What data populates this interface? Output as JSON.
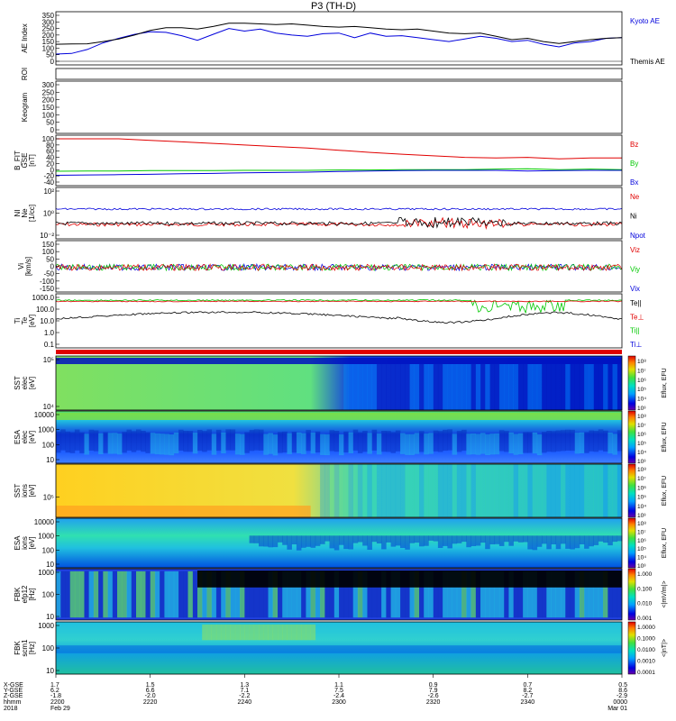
{
  "title": "P3 (TH-D)",
  "colors": {
    "red": "#e10000",
    "green": "#00c800",
    "blue": "#0000dc",
    "black": "#000000"
  },
  "chart_data": [
    {
      "type": "line",
      "id": "ae",
      "ylabel": "AE Index",
      "yticks": [
        "350",
        "300",
        "250",
        "200",
        "150",
        "100",
        "50",
        "0"
      ],
      "ylim": [
        0,
        350
      ],
      "x": [
        0,
        10,
        20,
        30,
        40,
        50,
        60,
        70,
        80,
        90,
        100,
        110,
        120,
        130,
        140,
        150,
        160,
        170,
        180,
        190,
        200,
        210,
        220,
        230,
        240,
        250,
        260,
        270,
        280,
        290,
        300,
        310,
        320,
        330,
        340,
        350,
        360
      ],
      "series": [
        {
          "name": "Kyoto AE",
          "color": "blue",
          "values": [
            55,
            60,
            90,
            140,
            175,
            205,
            225,
            220,
            195,
            160,
            205,
            250,
            230,
            245,
            215,
            200,
            190,
            210,
            215,
            180,
            215,
            190,
            195,
            180,
            165,
            150,
            170,
            190,
            175,
            150,
            160,
            130,
            110,
            140,
            150,
            175,
            180
          ]
        },
        {
          "name": "Themis AE",
          "color": "black",
          "values": [
            130,
            132,
            133,
            150,
            170,
            200,
            235,
            255,
            255,
            245,
            265,
            290,
            290,
            285,
            280,
            285,
            275,
            265,
            260,
            265,
            255,
            245,
            240,
            245,
            230,
            215,
            210,
            215,
            190,
            165,
            175,
            150,
            135,
            150,
            165,
            175,
            180
          ]
        }
      ]
    },
    {
      "type": "line",
      "id": "roi",
      "ylabel": "ROI",
      "yticks": []
    },
    {
      "type": "line",
      "id": "keogram",
      "ylabel": "Keogram",
      "yticks": [
        "300",
        "250",
        "200",
        "150",
        "100",
        "50",
        "0"
      ],
      "ylim": [
        0,
        320
      ]
    },
    {
      "type": "line",
      "id": "bfield",
      "ylabel": "B_FIT\nGSE\n[nT]",
      "yticks": [
        "100",
        "80",
        "60",
        "40",
        "20",
        "0",
        "-20",
        "-40"
      ],
      "ylim": [
        -40,
        100
      ],
      "x": [
        0,
        20,
        40,
        60,
        80,
        100,
        120,
        140,
        160,
        180,
        200,
        220,
        240,
        260,
        280,
        300,
        320,
        340,
        360
      ],
      "series": [
        {
          "name": "Bz",
          "color": "red",
          "values": [
            108,
            105,
            100,
            95,
            90,
            85,
            80,
            75,
            70,
            63,
            56,
            50,
            45,
            40,
            38,
            40,
            35,
            38,
            38
          ]
        },
        {
          "name": "By",
          "color": "green",
          "values": [
            -5,
            -4,
            -4,
            -3,
            -3,
            -3,
            -2,
            -2,
            -2,
            -1,
            -1,
            0,
            0,
            0,
            2,
            3,
            0,
            2,
            0
          ]
        },
        {
          "name": "Bx",
          "color": "blue",
          "values": [
            -18,
            -17,
            -16,
            -15,
            -13,
            -12,
            -10,
            -9,
            -8,
            -6,
            -4,
            -3,
            -2,
            -2,
            -2,
            -4,
            -3,
            -2,
            -2
          ]
        }
      ]
    },
    {
      "type": "line",
      "id": "density",
      "ylabel": "NI\nNe\n[1/cc]",
      "yticks": [
        "10²",
        "10⁰",
        "10⁻²"
      ],
      "log": true,
      "series": [
        {
          "name": "Ne",
          "color": "red"
        },
        {
          "name": "Ni",
          "color": "black"
        },
        {
          "name": "Npot",
          "color": "blue"
        }
      ]
    },
    {
      "type": "line",
      "id": "velocity",
      "ylabel": "Vi\n[km/s]",
      "yticks": [
        "150",
        "100",
        "50",
        "0",
        "-50",
        "-100",
        "-150"
      ],
      "ylim": [
        -175,
        175
      ],
      "series": [
        {
          "name": "Viz",
          "color": "red"
        },
        {
          "name": "Viy",
          "color": "green"
        },
        {
          "name": "Vix",
          "color": "blue"
        }
      ]
    },
    {
      "type": "line",
      "id": "temperature",
      "ylabel": "Ti\nTe\n[eV]",
      "yticks": [
        "1000.0",
        "100.0",
        "10.0",
        "1.0",
        "0.1"
      ],
      "log": true,
      "series": [
        {
          "name": "Te||",
          "color": "black"
        },
        {
          "name": "Te⊥",
          "color": "red"
        },
        {
          "name": "Ti||",
          "color": "green"
        },
        {
          "name": "Ti⊥",
          "color": "blue"
        }
      ]
    },
    {
      "type": "heatmap",
      "id": "sst-e",
      "ylabel": "SST\nelec\n[eV]",
      "yticks": [
        "10⁵",
        "10⁴"
      ],
      "colorbar": [
        "10⁸",
        "10⁷",
        "10⁶",
        "10⁵",
        "10⁴",
        "10³"
      ],
      "colorbar_label": "Eflux, EFU"
    },
    {
      "type": "heatmap",
      "id": "esa-e",
      "ylabel": "ESA\nelec\n[eV]",
      "yticks": [
        "10000",
        "1000",
        "100",
        "10"
      ],
      "colorbar": [
        "10⁸",
        "10⁷",
        "10⁶",
        "10⁵",
        "10⁴",
        "10³"
      ],
      "colorbar_label": "Eflux, EFU"
    },
    {
      "type": "heatmap",
      "id": "sst-i",
      "ylabel": "SST\nions\n[eV]",
      "yticks": [
        "10⁵"
      ],
      "colorbar": [
        "10⁸",
        "10⁷",
        "10⁶",
        "10⁵",
        "10⁴",
        "10³"
      ],
      "colorbar_label": "Eflux, EFU"
    },
    {
      "type": "heatmap",
      "id": "esa-i",
      "ylabel": "ESA\nions\n[eV]",
      "yticks": [
        "10000",
        "1000",
        "100",
        "10"
      ],
      "colorbar": [
        "10⁸",
        "10⁷",
        "10⁶",
        "10⁵",
        "10⁴",
        "10³"
      ],
      "colorbar_label": "Eflux, EFU"
    },
    {
      "type": "heatmap",
      "id": "fbk-e",
      "ylabel": "FBK\nefp12\n[Hz]",
      "yticks": [
        "1000",
        "100",
        "10"
      ],
      "colorbar": [
        "1.000",
        "0.100",
        "0.010",
        "0.001"
      ],
      "colorbar_label": "<|mV/m|>"
    },
    {
      "type": "heatmap",
      "id": "fbk-b",
      "ylabel": "FBK\nscm1\n[Hz]",
      "yticks": [
        "1000",
        "100",
        "10"
      ],
      "colorbar": [
        "1.0000",
        "0.1000",
        "0.0100",
        "0.0010",
        "0.0001"
      ],
      "colorbar_label": "<|nT|>"
    }
  ],
  "xaxis": {
    "row_labels": [
      "X-GSE",
      "Y-GSE",
      "Z-GSE",
      "hhmm",
      "2018"
    ],
    "ticks": [
      {
        "lines": [
          "1.7",
          "6.2",
          "-1.8",
          "2200",
          "Feb 29"
        ]
      },
      {
        "lines": [
          "1.5",
          "6.6",
          "-2.0",
          "2220",
          ""
        ]
      },
      {
        "lines": [
          "1.3",
          "7.1",
          "-2.2",
          "2240",
          ""
        ]
      },
      {
        "lines": [
          "1.1",
          "7.5",
          "-2.4",
          "2300",
          ""
        ]
      },
      {
        "lines": [
          "0.9",
          "7.9",
          "-2.6",
          "2320",
          ""
        ]
      },
      {
        "lines": [
          "0.7",
          "8.2",
          "-2.7",
          "2340",
          ""
        ]
      },
      {
        "lines": [
          "0.5",
          "8.6",
          "-2.9",
          "0000",
          "Mar 01"
        ]
      }
    ]
  }
}
